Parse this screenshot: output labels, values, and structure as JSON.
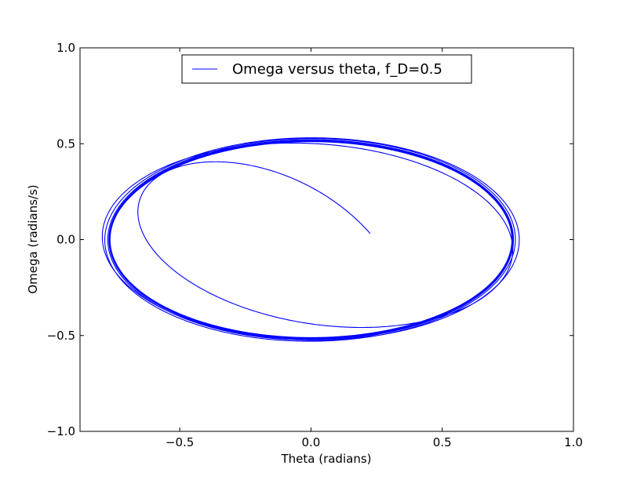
{
  "chart_data": {
    "type": "line",
    "title": "",
    "xlabel": "Theta (radians)",
    "ylabel": "Omega (radians/s)",
    "xlim": [
      -0.88,
      1.0
    ],
    "ylim": [
      -1.0,
      1.0
    ],
    "x_ticks": [
      -0.5,
      0.0,
      0.5,
      1.0
    ],
    "y_ticks": [
      -1.0,
      -0.5,
      0.0,
      0.5,
      1.0
    ],
    "x_tick_labels": [
      "−0.5",
      "0.0",
      "0.5",
      "1.0"
    ],
    "y_tick_labels": [
      "−1.0",
      "−0.5",
      "0.0",
      "0.5",
      "1.0"
    ],
    "grid": false,
    "legend": {
      "position": "top-center"
    },
    "series": [
      {
        "name": "Omega versus theta, f_D=0.5",
        "color": "#0000ff",
        "initial_theta": 0.2,
        "initial_omega": 0.0,
        "steady_state_theta_amplitude": 0.765,
        "steady_state_omega_amplitude": 0.51
      }
    ]
  }
}
